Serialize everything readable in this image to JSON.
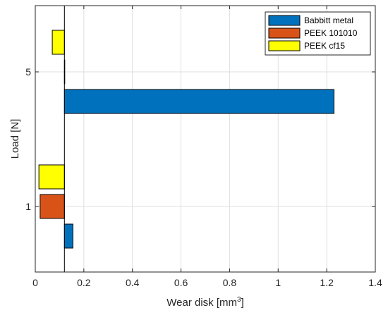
{
  "chart_data": {
    "type": "bar",
    "orientation": "horizontal",
    "categories": [
      "1",
      "5"
    ],
    "series": [
      {
        "name": "Babbitt metal",
        "values": [
          0.155,
          1.23
        ],
        "color": "#0072BD"
      },
      {
        "name": "PEEK 101010",
        "values": [
          0.02,
          0.12
        ],
        "color": "#D95319"
      },
      {
        "name": "PEEK cf15",
        "values": [
          0.015,
          0.07
        ],
        "color": "#FFFF00"
      }
    ],
    "baseline": 0.12,
    "xlabel": "Wear disk [mm",
    "xlabel_superscript": "3",
    "xlabel_suffix": "]",
    "ylabel": "Load [N]",
    "xlim": [
      0,
      1.4
    ],
    "xticks": [
      "0",
      "0.2",
      "0.4",
      "0.6",
      "0.8",
      "1",
      "1.2",
      "1.4"
    ],
    "grid": true,
    "legend_position": "top-right"
  }
}
